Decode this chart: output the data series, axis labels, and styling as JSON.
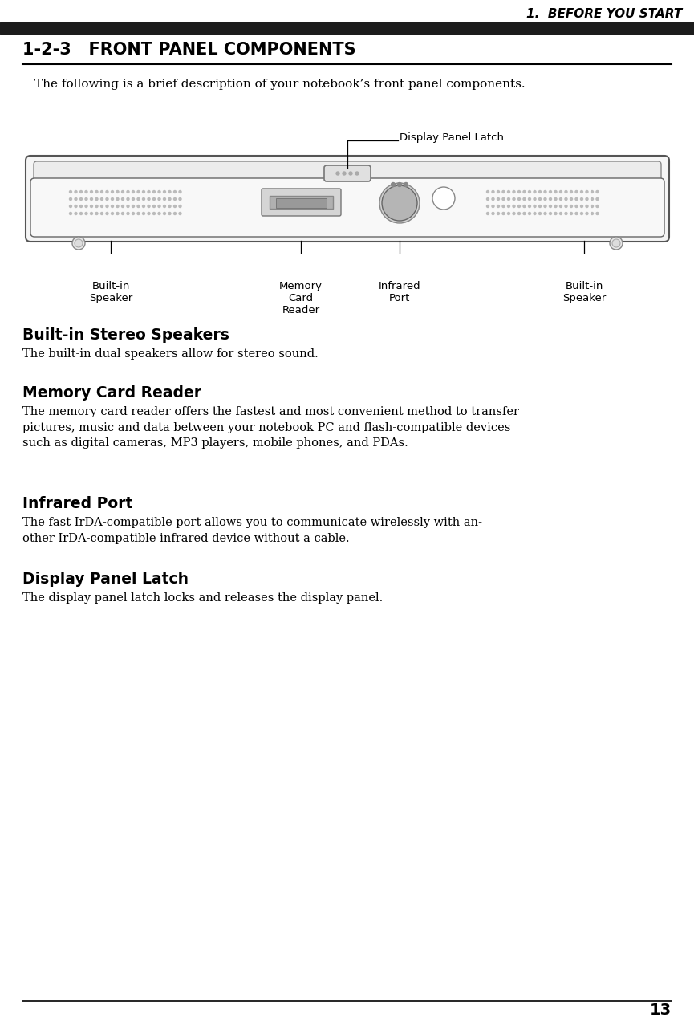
{
  "page_number": "13",
  "header_text": "1.  BEFORE YOU START",
  "section_title": "1-2-3   FRONT PANEL COMPONENTS",
  "intro_text": "The following is a brief description of your notebook’s front panel components.",
  "diagram_label_latch": "Display Panel Latch",
  "diagram_label_left_speaker": "Built-in\nSpeaker",
  "diagram_label_memory": "Memory\nCard\nReader",
  "diagram_label_infrared": "Infrared\nPort",
  "diagram_label_right_speaker": "Built-in\nSpeaker",
  "section1_title": "Built-in Stereo Speakers",
  "section1_body": "The built-in dual speakers allow for stereo sound.",
  "section2_title": "Memory Card Reader",
  "section2_body": "The memory card reader offers the fastest and most convenient method to transfer\npictures, music and data between your notebook PC and flash-compatible devices\nsuch as digital cameras, MP3 players, mobile phones, and PDAs.",
  "section3_title": "Infrared Port",
  "section3_body": "The fast IrDA-compatible port allows you to communicate wirelessly with an-\nother IrDA-compatible infrared device without a cable.",
  "section4_title": "Display Panel Latch",
  "section4_body": "The display panel latch locks and releases the display panel.",
  "bg_color": "#ffffff",
  "text_color": "#000000",
  "header_bar_color": "#1c1c1c",
  "line_color": "#000000"
}
